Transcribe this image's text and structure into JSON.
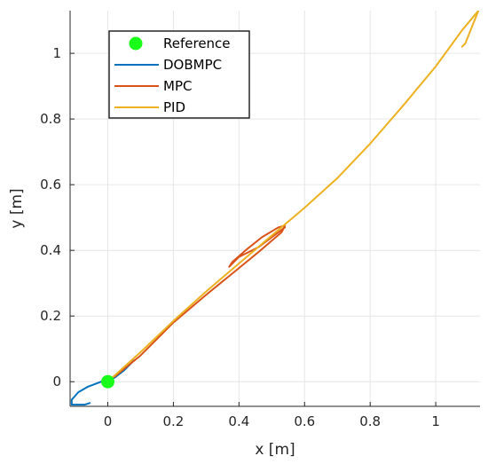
{
  "chart_data": {
    "type": "line",
    "title": "",
    "xlabel": "x [m]",
    "ylabel": "y [m]",
    "xlim": [
      -0.115,
      1.135
    ],
    "ylim": [
      -0.075,
      1.13
    ],
    "xticks": [
      0,
      0.2,
      0.4,
      0.6,
      0.8,
      1
    ],
    "xtick_labels": [
      "0",
      "0.2",
      "0.4",
      "0.6",
      "0.8",
      "1"
    ],
    "yticks": [
      0,
      0.2,
      0.4,
      0.6,
      0.8,
      1
    ],
    "ytick_labels": [
      "0",
      "0.2",
      "0.4",
      "0.6",
      "0.8",
      "1"
    ],
    "grid": true,
    "legend_position": "top-left",
    "series": [
      {
        "name": "Reference",
        "kind": "marker",
        "color": "#1aff1a",
        "points": [
          [
            0,
            0
          ]
        ]
      },
      {
        "name": "DOBMPC",
        "kind": "line",
        "color": "#0072bd",
        "points": [
          [
            0.08,
            0.065
          ],
          [
            0.05,
            0.035
          ],
          [
            0.02,
            0.012
          ],
          [
            -0.02,
            0.0
          ],
          [
            -0.06,
            -0.015
          ],
          [
            -0.09,
            -0.032
          ],
          [
            -0.11,
            -0.055
          ],
          [
            -0.11,
            -0.07
          ],
          [
            -0.09,
            -0.07
          ],
          [
            -0.07,
            -0.07
          ],
          [
            -0.055,
            -0.065
          ]
        ]
      },
      {
        "name": "MPC",
        "kind": "line",
        "color": "#d95319",
        "points": [
          [
            0.02,
            0.015
          ],
          [
            0.1,
            0.08
          ],
          [
            0.2,
            0.18
          ],
          [
            0.3,
            0.265
          ],
          [
            0.38,
            0.33
          ],
          [
            0.46,
            0.395
          ],
          [
            0.53,
            0.455
          ],
          [
            0.54,
            0.475
          ],
          [
            0.52,
            0.47
          ],
          [
            0.47,
            0.44
          ],
          [
            0.42,
            0.4
          ],
          [
            0.38,
            0.365
          ],
          [
            0.37,
            0.35
          ],
          [
            0.4,
            0.38
          ],
          [
            0.46,
            0.41
          ],
          [
            0.54,
            0.47
          ]
        ]
      },
      {
        "name": "PID",
        "kind": "line",
        "color": "#edb120",
        "points": [
          [
            0.005,
            0.005
          ],
          [
            0.1,
            0.09
          ],
          [
            0.2,
            0.185
          ],
          [
            0.3,
            0.275
          ],
          [
            0.4,
            0.36
          ],
          [
            0.5,
            0.445
          ],
          [
            0.6,
            0.53
          ],
          [
            0.7,
            0.62
          ],
          [
            0.8,
            0.725
          ],
          [
            0.9,
            0.84
          ],
          [
            1.0,
            0.96
          ],
          [
            1.08,
            1.07
          ],
          [
            1.13,
            1.13
          ],
          [
            1.11,
            1.08
          ],
          [
            1.09,
            1.03
          ],
          [
            1.08,
            1.02
          ]
        ]
      }
    ]
  },
  "colors": {
    "axes_bg": "#ffffff",
    "grid": "#e6e6e6",
    "axis": "#262626"
  }
}
